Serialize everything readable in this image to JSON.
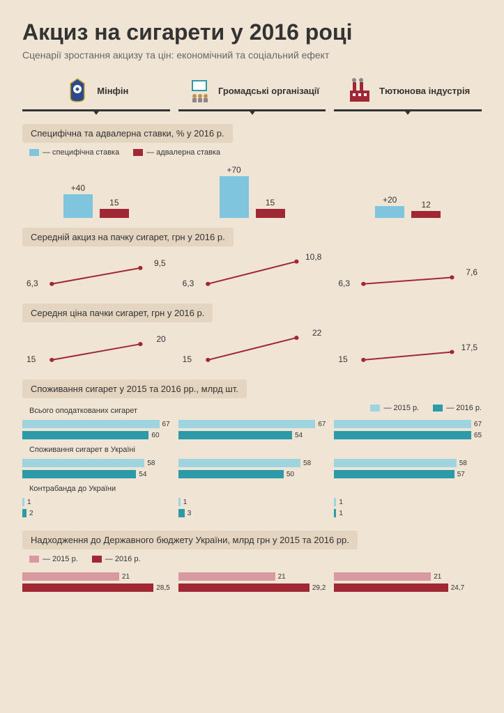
{
  "title": "Акциз на сигарети у 2016 році",
  "subtitle": "Сценарії зростання акцизу та цін: економічний та соціальний ефект",
  "colors": {
    "blue_light": "#7ec5dd",
    "blue_dark": "#2d9aa8",
    "red_dark": "#a02835",
    "red_light": "#d89aa0",
    "bg_box": "#e3d5c0",
    "text": "#333333"
  },
  "columns": [
    {
      "label": "Мінфін"
    },
    {
      "label": "Громадські організації"
    },
    {
      "label": "Тютюнова індустрія"
    }
  ],
  "section1": {
    "title": "Специфічна та адвалерна ставки, % у 2016 р.",
    "legend": [
      {
        "label": "— специфічна ставка",
        "color": "#7ec5dd"
      },
      {
        "label": "— адвалерна ставка",
        "color": "#a02835"
      }
    ],
    "data": [
      {
        "specific": 40,
        "specific_label": "+40",
        "advalorem": 15,
        "advalorem_label": "15"
      },
      {
        "specific": 70,
        "specific_label": "+70",
        "advalorem": 15,
        "advalorem_label": "15"
      },
      {
        "specific": 20,
        "specific_label": "+20",
        "advalorem": 12,
        "advalorem_label": "12"
      }
    ],
    "max": 70
  },
  "section2": {
    "title": "Середній акциз на пачку сигарет, грн у 2016 р.",
    "data": [
      {
        "start": 6.3,
        "end": 9.5,
        "start_label": "6,3",
        "end_label": "9,5"
      },
      {
        "start": 6.3,
        "end": 10.8,
        "start_label": "6,3",
        "end_label": "10,8"
      },
      {
        "start": 6.3,
        "end": 7.6,
        "start_label": "6,3",
        "end_label": "7,6"
      }
    ],
    "ymin": 5,
    "ymax": 12
  },
  "section3": {
    "title": "Середня ціна пачки сигарет, грн у 2016 р.",
    "data": [
      {
        "start": 15,
        "end": 20,
        "start_label": "15",
        "end_label": "20"
      },
      {
        "start": 15,
        "end": 22,
        "start_label": "15",
        "end_label": "22"
      },
      {
        "start": 15,
        "end": 17.5,
        "start_label": "15",
        "end_label": "17,5"
      }
    ],
    "ymin": 13,
    "ymax": 24
  },
  "section4": {
    "title": "Споживання сигарет у 2015 та 2016 рр., млрд шт.",
    "legend": [
      {
        "label": "— 2015 р.",
        "color": "#9dd4e0"
      },
      {
        "label": "— 2016 р.",
        "color": "#2d9aa8"
      }
    ],
    "groups": [
      {
        "sub": "Всього оподаткованих сигарет",
        "data": [
          {
            "y15": 67,
            "y16": 60
          },
          {
            "y15": 67,
            "y16": 54
          },
          {
            "y15": 67,
            "y16": 65
          }
        ]
      },
      {
        "sub": "Споживання сигарет в Україні",
        "data": [
          {
            "y15": 58,
            "y16": 54
          },
          {
            "y15": 58,
            "y16": 50
          },
          {
            "y15": 58,
            "y16": 57
          }
        ]
      },
      {
        "sub": "Контрабанда до України",
        "data": [
          {
            "y15": 1,
            "y16": 2
          },
          {
            "y15": 1,
            "y16": 3
          },
          {
            "y15": 1,
            "y16": 1
          }
        ]
      }
    ],
    "max": 70
  },
  "section5": {
    "title": "Надходження до Державного бюджету України, млрд грн у 2015 та 2016 рр.",
    "legend": [
      {
        "label": "— 2015 р.",
        "color": "#d89aa0"
      },
      {
        "label": "— 2016 р.",
        "color": "#a02835"
      }
    ],
    "data": [
      {
        "y15": 21,
        "y15_label": "21",
        "y16": 28.5,
        "y16_label": "28,5"
      },
      {
        "y15": 21,
        "y15_label": "21",
        "y16": 29.2,
        "y16_label": "29,2"
      },
      {
        "y15": 21,
        "y15_label": "21",
        "y16": 24.7,
        "y16_label": "24,7"
      }
    ],
    "max": 32
  }
}
